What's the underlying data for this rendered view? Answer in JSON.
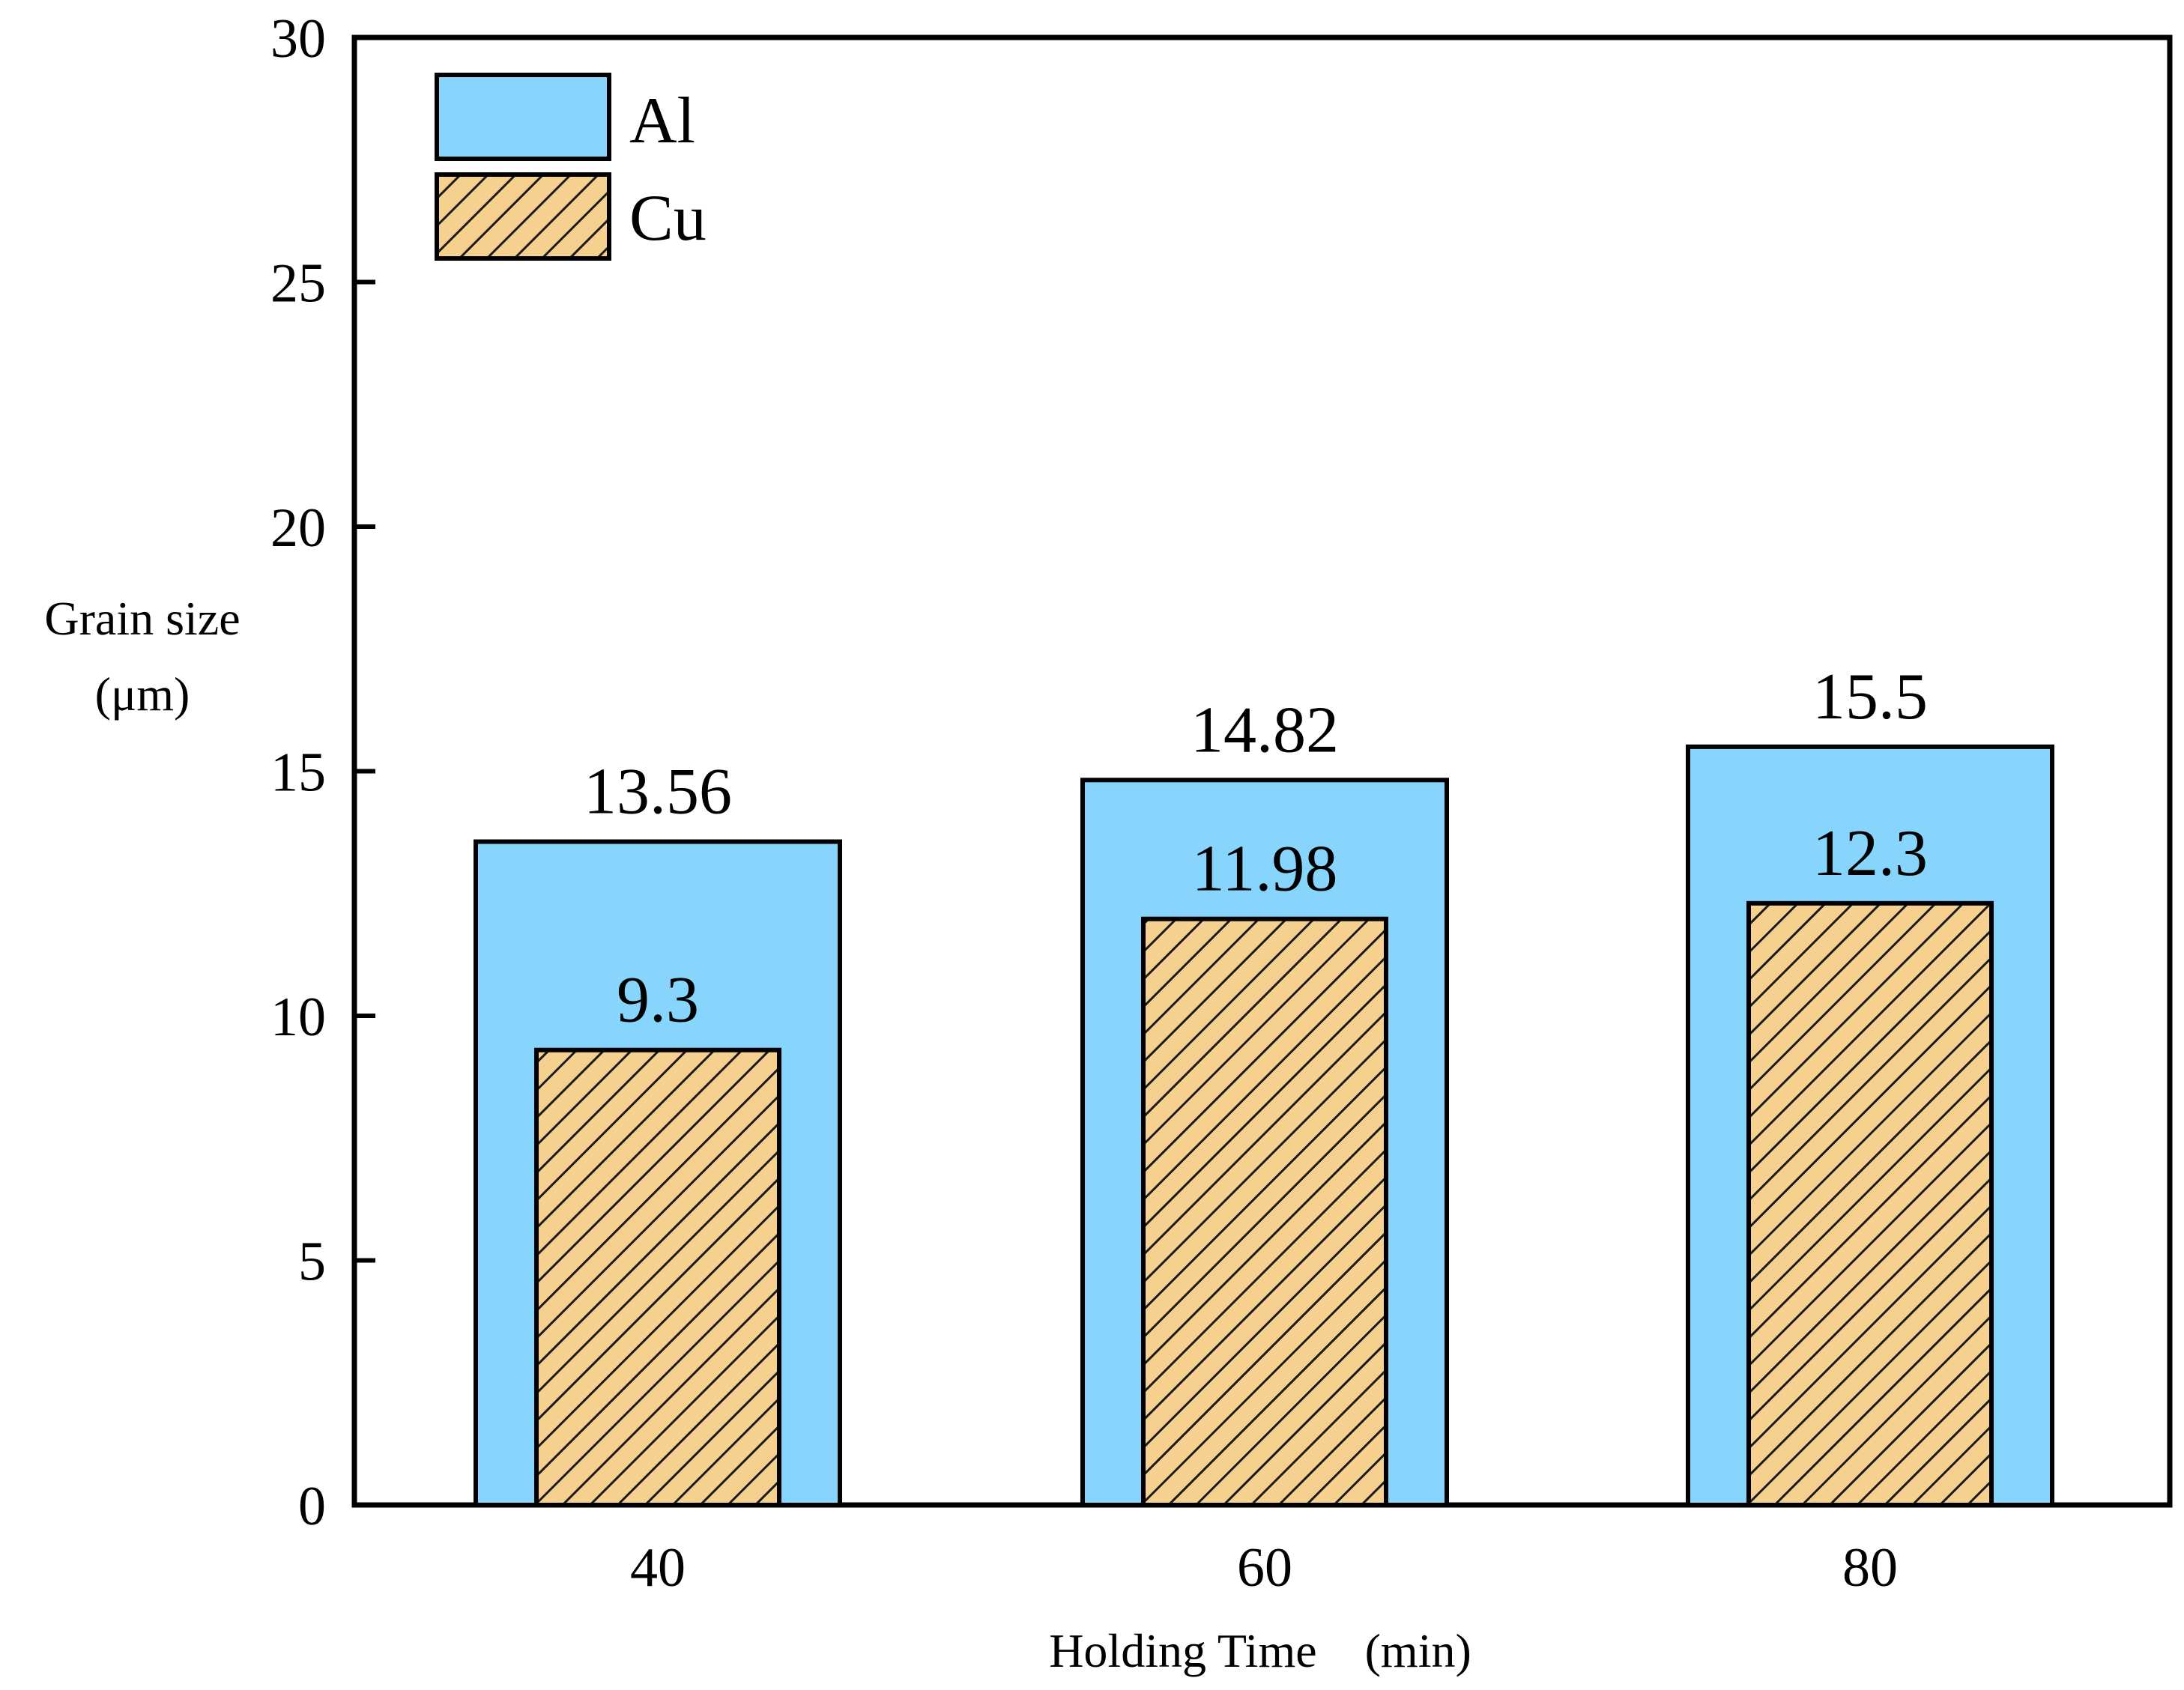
{
  "chart_data": {
    "type": "bar",
    "title": "",
    "xlabel": "Holding Time　(min)",
    "ylabel_lines": [
      "Grain size",
      "(μm)"
    ],
    "categories": [
      "40",
      "60",
      "80"
    ],
    "series": [
      {
        "name": "Al",
        "values": [
          13.56,
          14.82,
          15.5
        ],
        "labels": [
          "13.56",
          "14.82",
          "15.5"
        ],
        "color": "#87d5fc",
        "pattern": "solid"
      },
      {
        "name": "Cu",
        "values": [
          9.3,
          11.98,
          12.3
        ],
        "labels": [
          "9.3",
          "11.98",
          "12.3"
        ],
        "color": "#f5d08e",
        "pattern": "hatched"
      }
    ],
    "ylim": [
      0,
      30
    ],
    "yticks": [
      0,
      5,
      10,
      15,
      20,
      25,
      30
    ],
    "grid": false,
    "legend_position": "top-left",
    "bar_layout": "overlapped (Cu drawn inside Al)"
  }
}
